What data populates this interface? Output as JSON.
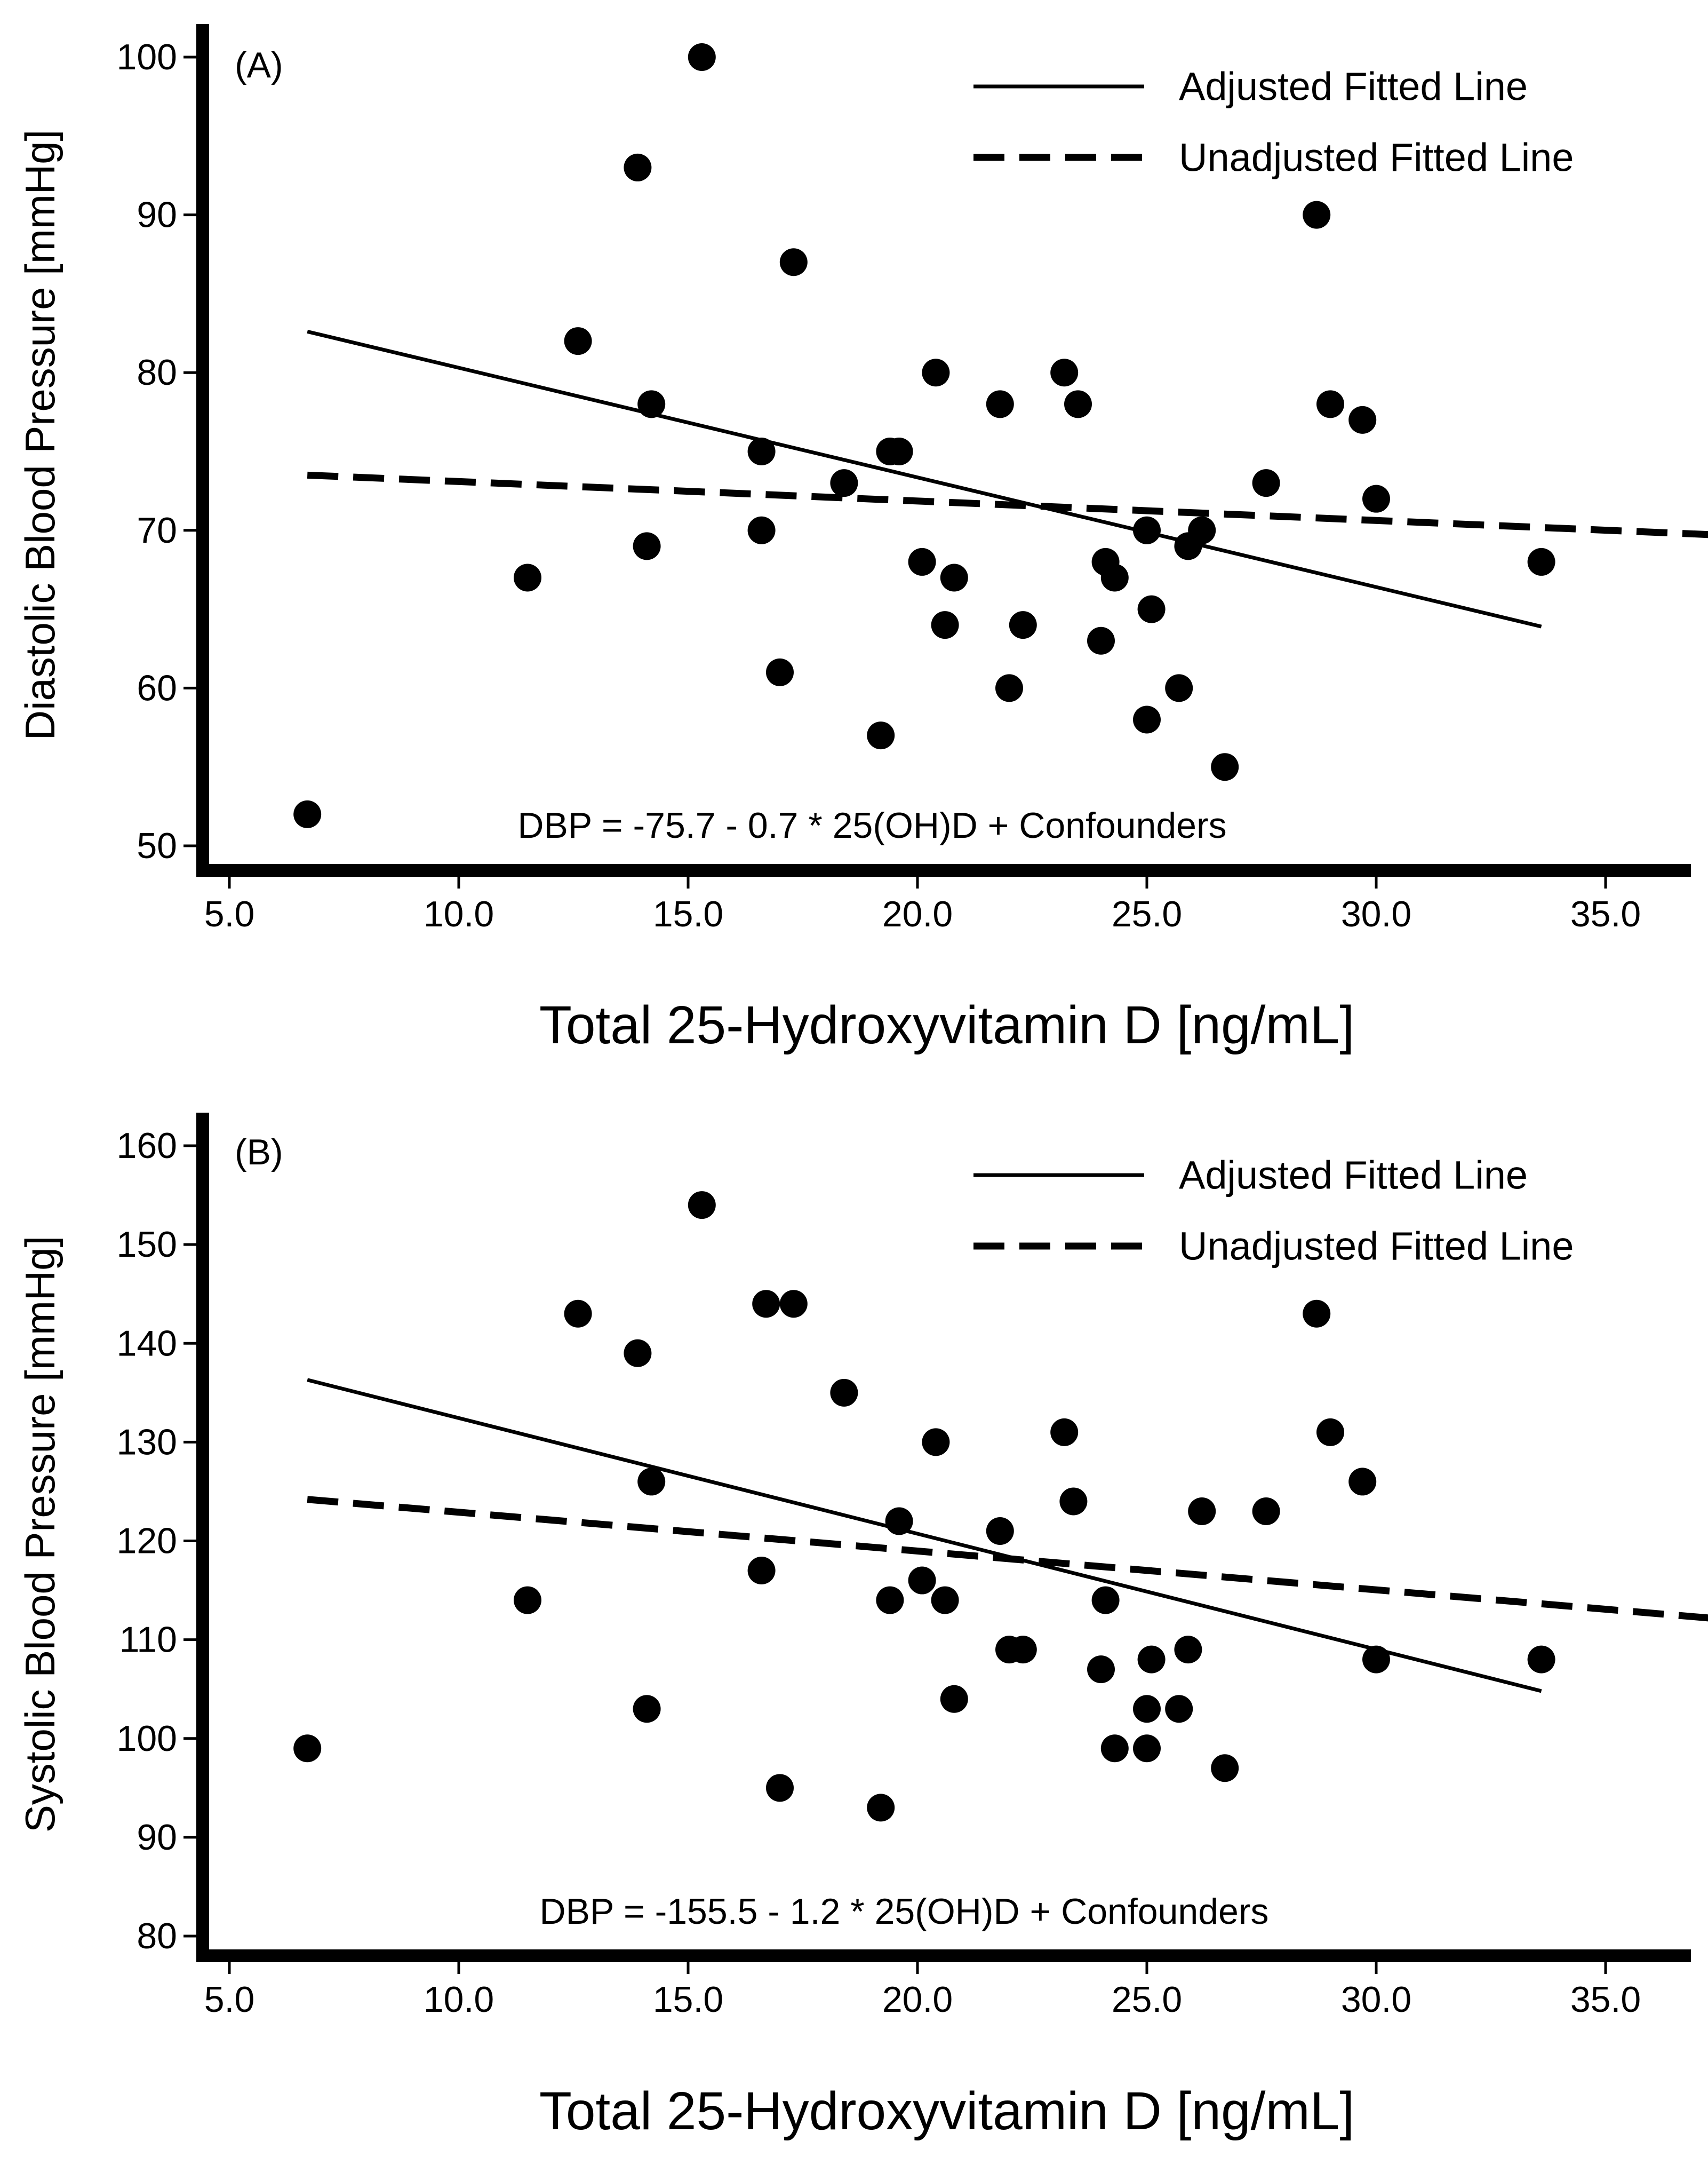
{
  "chart_data": [
    {
      "type": "scatter",
      "panel_label": "(A)",
      "title": "",
      "xlabel": "Total 25-Hydroxyvitamin D [ng/mL]",
      "ylabel": "Diastolic Blood Pressure [mmHg]",
      "xlim": [
        5.0,
        37.5
      ],
      "ylim": [
        48.5,
        101.5
      ],
      "xticks": [
        "5.0",
        "10.0",
        "15.0",
        "20.0",
        "25.0",
        "30.0",
        "35.0"
      ],
      "yticks": [
        "50",
        "60",
        "70",
        "80",
        "90",
        "100"
      ],
      "grid": false,
      "legend_position": "top-right",
      "annotation": "DBP = -75.7 - 0.7 * 25(OH)D + Confounders",
      "series": [
        {
          "name": "Observations",
          "x": [
            6.7,
            11.5,
            12.6,
            13.9,
            14.1,
            14.2,
            15.3,
            16.6,
            16.6,
            17.0,
            17.3,
            18.4,
            19.2,
            19.4,
            19.6,
            20.1,
            20.4,
            20.6,
            20.8,
            21.8,
            22.0,
            22.3,
            23.2,
            23.5,
            24.0,
            24.1,
            24.3,
            25.0,
            25.0,
            25.1,
            25.7,
            25.9,
            26.2,
            26.7,
            27.6,
            28.7,
            29.0,
            29.7,
            30.0,
            33.6
          ],
          "y": [
            52,
            67,
            82,
            93,
            69,
            78,
            100,
            70,
            75,
            61,
            87,
            73,
            57,
            75,
            75,
            68,
            80,
            64,
            67,
            78,
            60,
            64,
            80,
            78,
            63,
            68,
            67,
            70,
            58,
            65,
            60,
            69,
            70,
            55,
            73,
            90,
            78,
            77,
            72,
            68
          ]
        },
        {
          "name": "Adjusted Fitted Line",
          "style": "solid",
          "x": [
            6.7,
            33.6
          ],
          "y": [
            82.6,
            63.9
          ]
        },
        {
          "name": "Unadjusted Fitted Line",
          "style": "dashed",
          "x": [
            6.7,
            37.5
          ],
          "y": [
            73.5,
            69.7
          ]
        }
      ]
    },
    {
      "type": "scatter",
      "panel_label": "(B)",
      "title": "",
      "xlabel": "Total 25-Hydroxyvitamin D [ng/mL]",
      "ylabel": "Systolic Blood Pressure [mmHg]",
      "xlim": [
        5.0,
        37.5
      ],
      "ylim": [
        78,
        162
      ],
      "xticks": [
        "5.0",
        "10.0",
        "15.0",
        "20.0",
        "25.0",
        "30.0",
        "35.0"
      ],
      "yticks": [
        "80",
        "90",
        "100",
        "110",
        "120",
        "130",
        "140",
        "150",
        "160"
      ],
      "grid": false,
      "legend_position": "top-right",
      "annotation": "DBP = -155.5 - 1.2 * 25(OH)D + Confounders",
      "series": [
        {
          "name": "Observations",
          "x": [
            6.7,
            11.5,
            12.6,
            13.9,
            14.1,
            14.2,
            15.3,
            16.6,
            16.7,
            17.0,
            17.3,
            18.4,
            19.2,
            19.4,
            19.6,
            20.1,
            20.4,
            20.6,
            20.8,
            21.8,
            22.0,
            22.3,
            23.2,
            23.4,
            24.0,
            24.1,
            24.3,
            25.0,
            25.0,
            25.1,
            25.7,
            25.9,
            26.2,
            26.7,
            27.6,
            28.7,
            29.0,
            29.7,
            30.0,
            33.6
          ],
          "y": [
            99,
            114,
            143,
            139,
            103,
            126,
            154,
            117,
            144,
            95,
            144,
            135,
            93,
            114,
            122,
            116,
            130,
            114,
            104,
            121,
            109,
            109,
            131,
            124,
            107,
            114,
            99,
            103,
            99,
            108,
            103,
            109,
            123,
            97,
            123,
            143,
            131,
            126,
            108,
            108
          ]
        },
        {
          "name": "Adjusted Fitted Line",
          "style": "solid",
          "x": [
            6.7,
            33.6
          ],
          "y": [
            136.3,
            104.8
          ]
        },
        {
          "name": "Unadjusted Fitted Line",
          "style": "dashed",
          "x": [
            6.7,
            37.5
          ],
          "y": [
            124.2,
            112.1
          ]
        }
      ]
    }
  ]
}
